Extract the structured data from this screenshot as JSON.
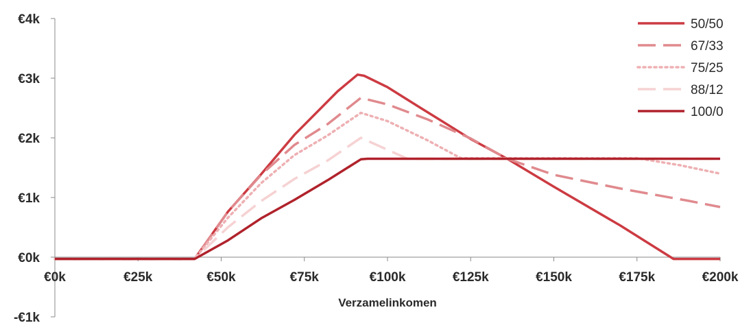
{
  "chart_data": {
    "type": "line",
    "xlabel": "Verzamelinkomen",
    "ylabel": "",
    "xlim": [
      0,
      200000
    ],
    "ylim": [
      -1000,
      4000
    ],
    "x_ticks": [
      0,
      25000,
      50000,
      75000,
      100000,
      125000,
      150000,
      175000,
      200000
    ],
    "x_tick_labels": [
      "€0k",
      "€25k",
      "€50k",
      "€75k",
      "€100k",
      "€125k",
      "€150k",
      "€175k",
      "€200k"
    ],
    "y_ticks": [
      4000,
      3000,
      2000,
      1000,
      0,
      -1000
    ],
    "y_tick_labels": [
      "€4k",
      "€3k",
      "€2k",
      "€1k",
      "€0k",
      "-€1k"
    ],
    "legend_position": "top-right",
    "series": [
      {
        "name": "50/50",
        "color": "#cc3b42",
        "dash": "solid",
        "points": [
          [
            0,
            -30
          ],
          [
            42000,
            -30
          ],
          [
            52000,
            760
          ],
          [
            62000,
            1390
          ],
          [
            72000,
            2050
          ],
          [
            85000,
            2780
          ],
          [
            91000,
            3060
          ],
          [
            93000,
            3040
          ],
          [
            100000,
            2850
          ],
          [
            110000,
            2500
          ],
          [
            125000,
            1980
          ],
          [
            136000,
            1650
          ],
          [
            150000,
            1180
          ],
          [
            170000,
            530
          ],
          [
            186000,
            -30
          ],
          [
            200000,
            -30
          ]
        ]
      },
      {
        "name": "67/33",
        "color": "#e08a8e",
        "dash": "long-dash",
        "points": [
          [
            0,
            -30
          ],
          [
            42000,
            -30
          ],
          [
            52000,
            760
          ],
          [
            62000,
            1380
          ],
          [
            72000,
            1880
          ],
          [
            82000,
            2230
          ],
          [
            92000,
            2670
          ],
          [
            100000,
            2560
          ],
          [
            112000,
            2310
          ],
          [
            125000,
            1990
          ],
          [
            136000,
            1650
          ],
          [
            150000,
            1380
          ],
          [
            170000,
            1150
          ],
          [
            190000,
            950
          ],
          [
            200000,
            840
          ]
        ]
      },
      {
        "name": "75/25",
        "color": "#eeb0b3",
        "dash": "dotted",
        "points": [
          [
            0,
            -30
          ],
          [
            42000,
            -30
          ],
          [
            52000,
            660
          ],
          [
            62000,
            1240
          ],
          [
            72000,
            1710
          ],
          [
            82000,
            2040
          ],
          [
            92000,
            2420
          ],
          [
            100000,
            2280
          ],
          [
            112000,
            1960
          ],
          [
            122000,
            1660
          ],
          [
            140000,
            1660
          ],
          [
            160000,
            1660
          ],
          [
            175000,
            1660
          ],
          [
            188000,
            1540
          ],
          [
            200000,
            1400
          ]
        ]
      },
      {
        "name": "88/12",
        "color": "#f6d2d3",
        "dash": "long-dash",
        "points": [
          [
            0,
            -30
          ],
          [
            42000,
            -30
          ],
          [
            52000,
            500
          ],
          [
            62000,
            940
          ],
          [
            72000,
            1310
          ],
          [
            82000,
            1620
          ],
          [
            92000,
            2000
          ],
          [
            100000,
            1800
          ],
          [
            106000,
            1650
          ],
          [
            200000,
            1650
          ]
        ]
      },
      {
        "name": "100/0",
        "color": "#b0222b",
        "dash": "solid",
        "points": [
          [
            0,
            -30
          ],
          [
            42000,
            -30
          ],
          [
            52000,
            280
          ],
          [
            62000,
            650
          ],
          [
            72000,
            960
          ],
          [
            82000,
            1290
          ],
          [
            92000,
            1640
          ],
          [
            94000,
            1650
          ],
          [
            200000,
            1650
          ]
        ]
      }
    ]
  }
}
